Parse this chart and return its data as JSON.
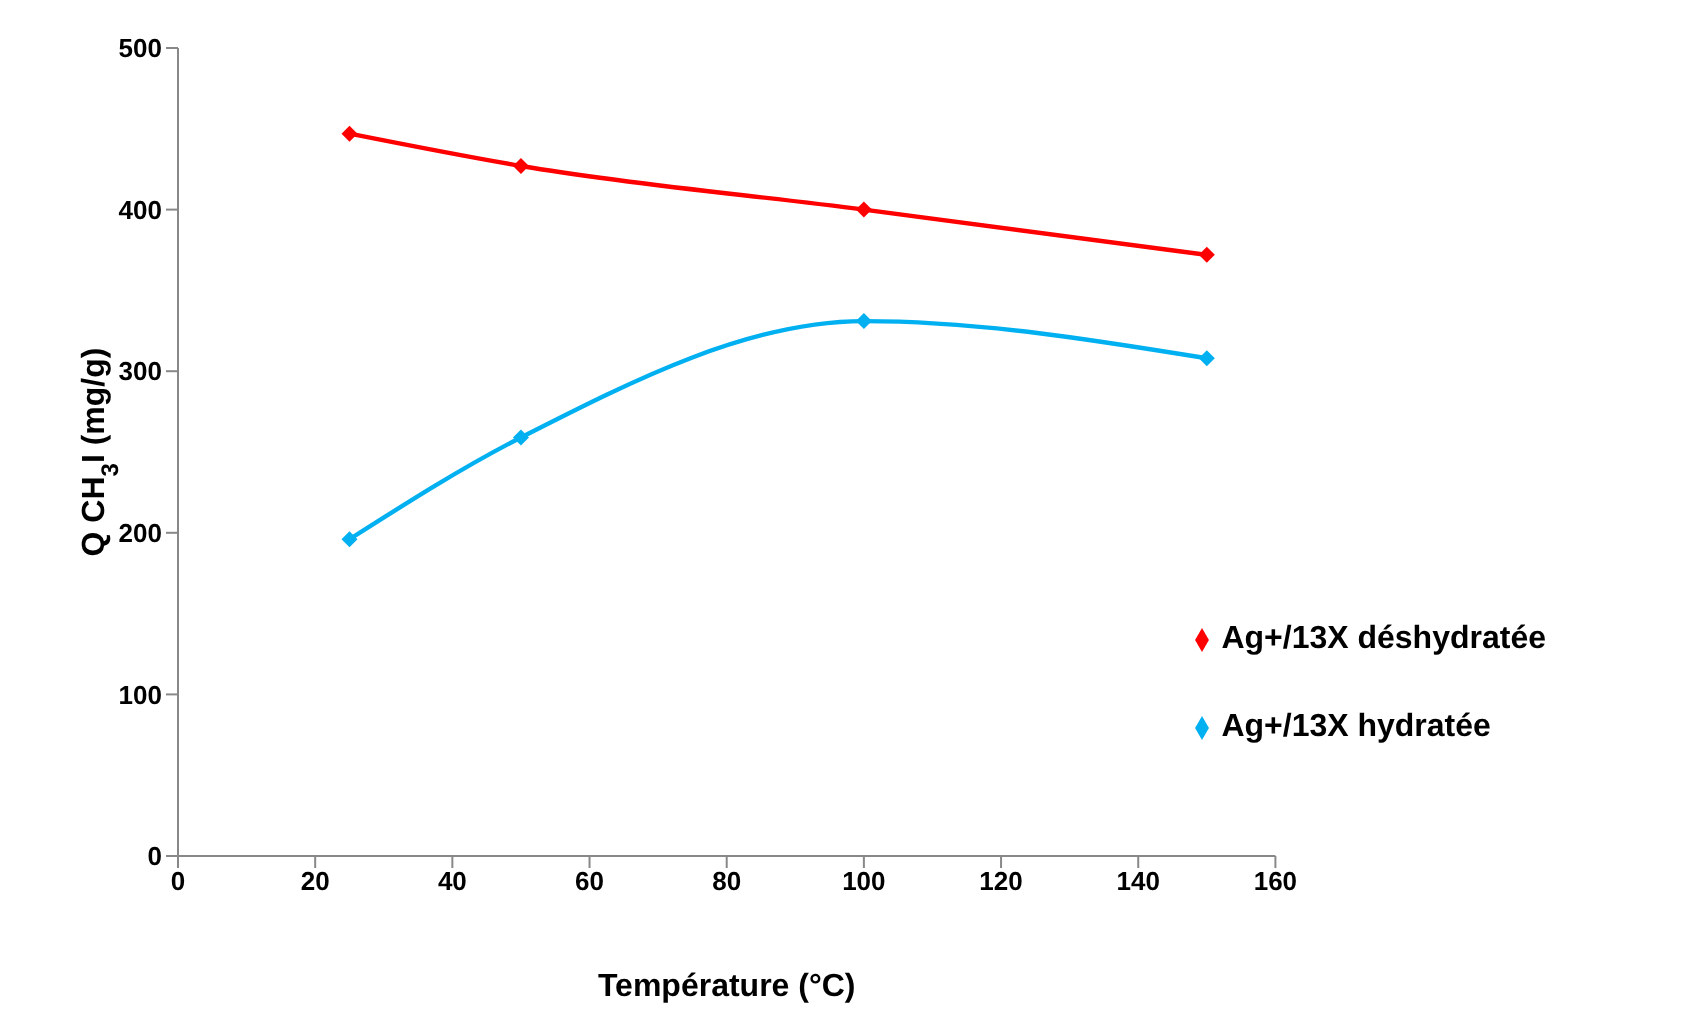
{
  "chart_data": {
    "type": "line",
    "xlabel": "Température (°C)",
    "ylabel": "Q CH$_{3}$I (mg/g)",
    "x": [
      25,
      50,
      100,
      150
    ],
    "series": [
      {
        "name": "Ag+/13X déshydratée",
        "color": "#ff0000",
        "values": [
          447,
          427,
          400,
          372
        ]
      },
      {
        "name": "Ag+/13X hydratée",
        "color": "#00b0f0",
        "values": [
          196,
          259,
          331,
          308
        ]
      }
    ],
    "xlim": [
      0,
      160
    ],
    "xticks": [
      0,
      20,
      40,
      60,
      80,
      100,
      120,
      140,
      160
    ],
    "ylim": [
      0,
      500
    ],
    "yticks": [
      0,
      100,
      200,
      300,
      400,
      500
    ],
    "grid": false,
    "legend": "right",
    "marker": "diamond",
    "line_style": "solid"
  }
}
